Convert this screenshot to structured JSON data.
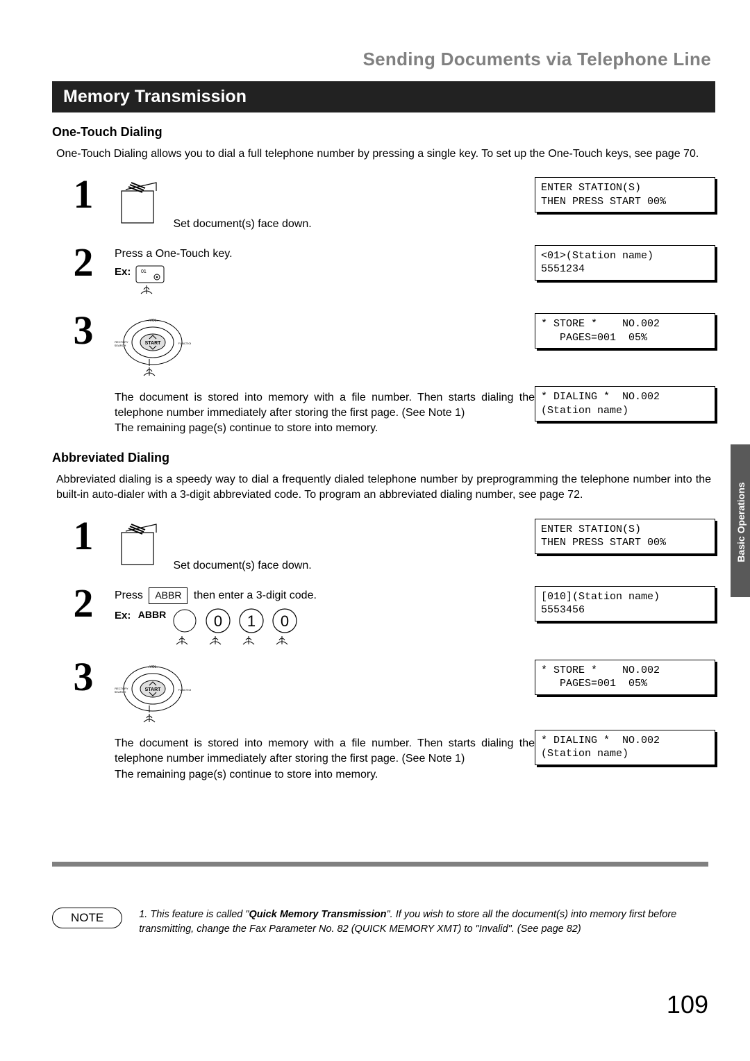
{
  "section_title": "Sending Documents via Telephone Line",
  "black_bar": "Memory Transmission",
  "side_tab": "Basic Operations",
  "page_number": "109",
  "one_touch": {
    "heading": "One-Touch Dialing",
    "intro": "One-Touch Dialing allows you to dial a full telephone number by pressing a single key. To set up the One-Touch keys, see page 70.",
    "step1": {
      "num": "1",
      "caption": "Set document(s) face down.",
      "lcd_l1": "ENTER STATION(S)",
      "lcd_l2": "THEN PRESS START 00%"
    },
    "step2": {
      "num": "2",
      "text": "Press a One-Touch key.",
      "ex": "Ex:",
      "lcd_l1": "<01>(Station name)",
      "lcd_l2": "5551234"
    },
    "step3": {
      "num": "3",
      "text": "The document is stored into memory with a file number. Then starts dialing the telephone number immediately after storing the first page. (See Note 1)\nThe remaining page(s) continue to store into memory.",
      "lcd1_l1": "* STORE *    NO.002",
      "lcd1_l2": "   PAGES=001  05%",
      "lcd2_l1": "* DIALING *  NO.002",
      "lcd2_l2": "(Station name)"
    }
  },
  "abbrev": {
    "heading": "Abbreviated Dialing",
    "intro": "Abbreviated dialing is a speedy way to dial a frequently dialed telephone number by preprogramming the telephone number into the built-in auto-dialer with a 3-digit abbreviated code. To program an abbreviated dialing number, see page 72.",
    "step1": {
      "num": "1",
      "caption": "Set document(s) face down.",
      "lcd_l1": "ENTER STATION(S)",
      "lcd_l2": "THEN PRESS START 00%"
    },
    "step2": {
      "num": "2",
      "text_a": "Press ",
      "key": "ABBR",
      "text_b": " then enter a 3-digit code.",
      "ex": "Ex:",
      "abbr_label": "ABBR",
      "digits": [
        "0",
        "1",
        "0"
      ],
      "lcd_l1": "[010](Station name)",
      "lcd_l2": "5553456"
    },
    "step3": {
      "num": "3",
      "text": "The document is stored into memory with a file number. Then starts dialing the telephone number immediately after storing the first page. (See Note 1)\nThe remaining page(s) continue to store into memory.",
      "lcd1_l1": "* STORE *    NO.002",
      "lcd1_l2": "   PAGES=001  05%",
      "lcd2_l1": "* DIALING *  NO.002",
      "lcd2_l2": "(Station name)"
    }
  },
  "note": {
    "label": "NOTE",
    "text_a": "1. This feature is called \"",
    "bold": "Quick Memory Transmission",
    "text_b": "\". If you wish to store all the document(s) into memory first before transmitting, change the Fax Parameter No. 82 (QUICK MEMORY XMT) to \"Invalid\". (See page 82)"
  }
}
